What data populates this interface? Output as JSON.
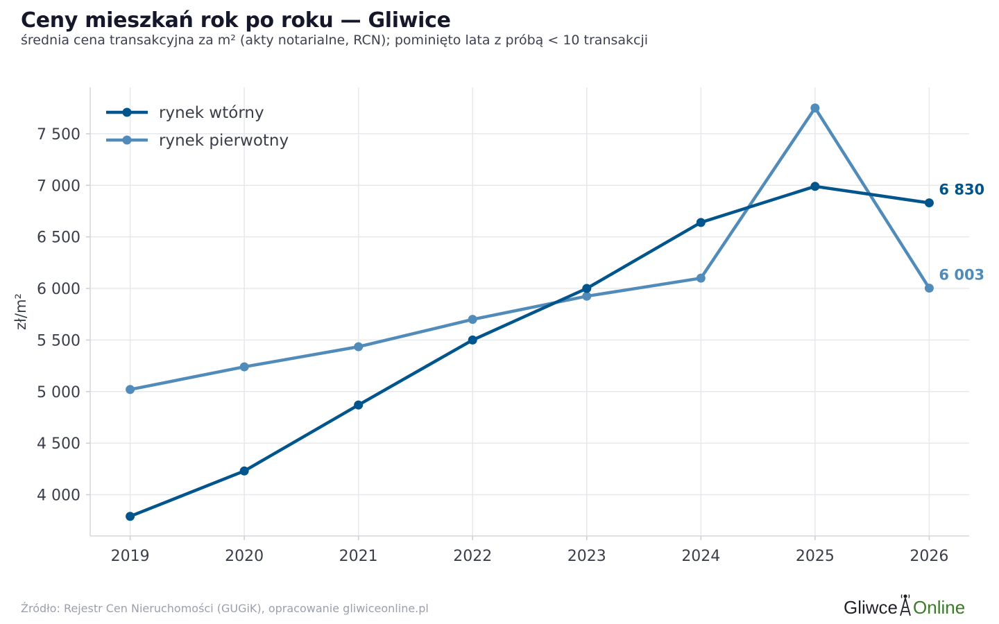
{
  "header": {
    "title": "Ceny mieszkań rok po roku — Gliwice",
    "subtitle": "średnia cena transakcyjna za m² (akty notarialne, RCN); pominięto lata z próbą < 10 transakcji"
  },
  "footer": {
    "source": "Źródło: Rejestr Cen Nieruchomości (GUGiK), opracowanie gliwiceonline.pl",
    "brand_part1": "Gliwce",
    "brand_part2": "Online"
  },
  "colors": {
    "secondary": "#00558c",
    "primary": "#508bb9",
    "grid": "#e6e8ec"
  },
  "chart_data": {
    "type": "line",
    "title": "Ceny mieszkań rok po roku — Gliwice",
    "subtitle": "średnia cena transakcyjna za m² (akty notarialne, RCN); pominięto lata z próbą < 10 transakcji",
    "xlabel": "",
    "ylabel": "zł/m²",
    "x": [
      2019,
      2020,
      2021,
      2022,
      2023,
      2024,
      2025,
      2026
    ],
    "xlim": [
      2018.65,
      2026.35
    ],
    "ylim": [
      3600,
      7950
    ],
    "yticks": [
      4000,
      4500,
      5000,
      5500,
      6000,
      6500,
      7000,
      7500
    ],
    "ytick_labels": [
      "4 000",
      "4 500",
      "5 000",
      "5 500",
      "6 000",
      "6 500",
      "7 000",
      "7 500"
    ],
    "xtick_labels": [
      "2019",
      "2020",
      "2021",
      "2022",
      "2023",
      "2024",
      "2025",
      "2026"
    ],
    "grid": true,
    "legend_position": "top-left",
    "series": [
      {
        "name": "rynek wtórny",
        "color": "#00558c",
        "values": [
          3790,
          4230,
          4870,
          5500,
          6000,
          6640,
          6990,
          6830
        ],
        "end_label": "6 830"
      },
      {
        "name": "rynek pierwotny",
        "color": "#508bb9",
        "values": [
          5020,
          5240,
          5435,
          5700,
          5925,
          6100,
          7750,
          6003
        ],
        "end_label": "6 003"
      }
    ]
  }
}
